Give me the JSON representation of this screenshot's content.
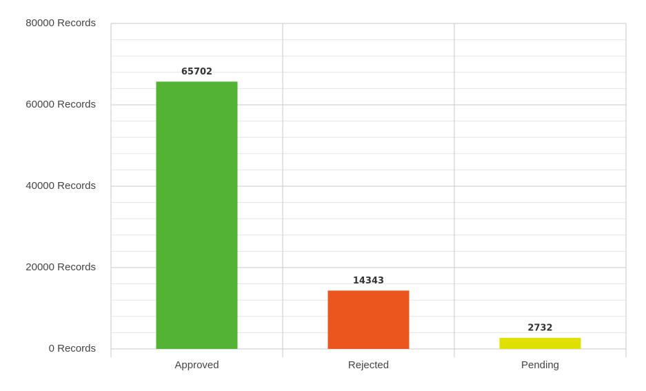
{
  "chart_data": {
    "type": "bar",
    "categories": [
      "Approved",
      "Rejected",
      "Pending"
    ],
    "values": [
      65702,
      14343,
      2732
    ],
    "colors": [
      "#52b335",
      "#ea561e",
      "#dde000"
    ],
    "ylim": [
      0,
      80000
    ],
    "yticks": [
      {
        "value": 0,
        "label": "0 Records"
      },
      {
        "value": 20000,
        "label": "20000 Records"
      },
      {
        "value": 40000,
        "label": "40000 Records"
      },
      {
        "value": 60000,
        "label": "60000 Records"
      },
      {
        "value": 80000,
        "label": "80000 Records"
      }
    ],
    "minor_yticks": [
      4000,
      8000,
      12000,
      16000,
      24000,
      28000,
      32000,
      36000,
      44000,
      48000,
      52000,
      56000,
      64000,
      68000,
      72000,
      76000
    ],
    "grid": true
  }
}
